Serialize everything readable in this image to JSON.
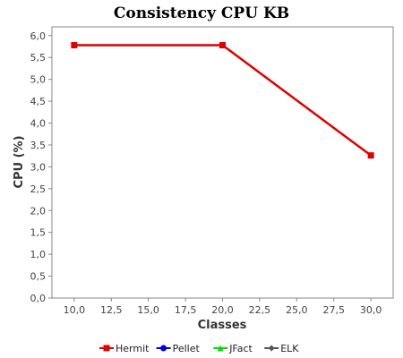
{
  "chart_data": {
    "type": "line",
    "title": "Consistency CPU KB",
    "xlabel": "Classes",
    "ylabel": "CPU (%)",
    "xlim": [
      8.5,
      31.5
    ],
    "ylim": [
      0.0,
      6.2
    ],
    "x_ticks": [
      "10,0",
      "12,5",
      "15,0",
      "17,5",
      "20,0",
      "22,5",
      "25,0",
      "27,5",
      "30,0"
    ],
    "x_tick_values": [
      10,
      12.5,
      15,
      17.5,
      20,
      22.5,
      25,
      27.5,
      30
    ],
    "y_ticks": [
      "0,0",
      "0,5",
      "1,0",
      "1,5",
      "2,0",
      "2,5",
      "3,0",
      "3,5",
      "4,0",
      "4,5",
      "5,0",
      "5,5",
      "6,0"
    ],
    "y_tick_values": [
      0,
      0.5,
      1,
      1.5,
      2,
      2.5,
      3,
      3.5,
      4,
      4.5,
      5,
      5.5,
      6
    ],
    "grid": false,
    "legend_position": "bottom",
    "series": [
      {
        "name": "Hermit",
        "color": "#e00000",
        "marker": "square",
        "points": [
          {
            "x": 10,
            "y": 5.78
          },
          {
            "x": 20,
            "y": 5.78
          },
          {
            "x": 30,
            "y": 3.26
          }
        ]
      },
      {
        "name": "Pellet",
        "color": "#0000e0",
        "marker": "circle",
        "points": []
      },
      {
        "name": "JFact",
        "color": "#00e000",
        "marker": "triangle",
        "points": []
      },
      {
        "name": "ELK",
        "color": "#555555",
        "marker": "diamond",
        "points": []
      }
    ]
  }
}
